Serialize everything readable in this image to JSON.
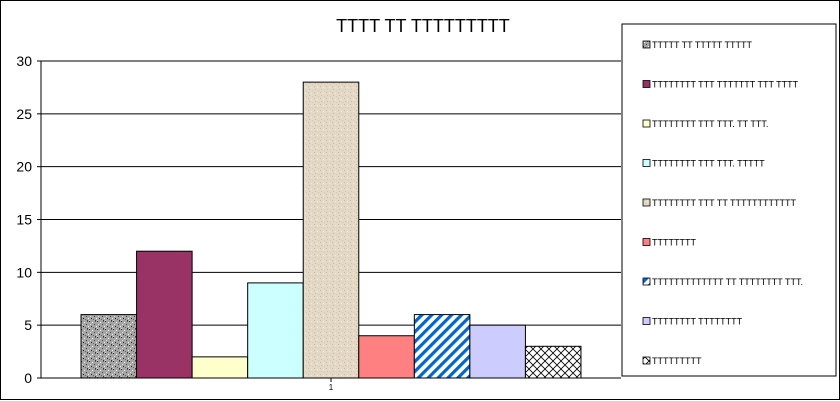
{
  "chart_data": {
    "type": "bar",
    "title": "TTTT TT TTTTTTTTT",
    "xlabel": "",
    "ylabel": "",
    "categories": [
      "1"
    ],
    "ylim": [
      0,
      30
    ],
    "yticks": [
      0,
      5,
      10,
      15,
      20,
      25,
      30
    ],
    "grid": true,
    "legend_position": "right",
    "series": [
      {
        "name": "TTTTT TT TTTTT TTTTT",
        "values": [
          6
        ],
        "color": "#a3a3a3",
        "pattern": "granite"
      },
      {
        "name": "TTTTTTTT TTT TTTTTTT TTT TTTT",
        "values": [
          12
        ],
        "color": "#993366",
        "pattern": "solid"
      },
      {
        "name": "TTTTTTTT TTT TTT. TT TTT.",
        "values": [
          2
        ],
        "color": "#ffffcc",
        "pattern": "solid"
      },
      {
        "name": "TTTTTTTT TTT TTT. TTTTT",
        "values": [
          9
        ],
        "color": "#ccffff",
        "pattern": "solid"
      },
      {
        "name": "TTTTTTTT TTT TT  TTTTTTTTTTTT",
        "values": [
          28
        ],
        "color": "#e3d9c6",
        "pattern": "sand"
      },
      {
        "name": "TTTTTTTT",
        "values": [
          4
        ],
        "color": "#ff8080",
        "pattern": "solid"
      },
      {
        "name": "TTTTTTTTTTTTT TT TTTTTTTT TTT.",
        "values": [
          6
        ],
        "color": "#0066cc",
        "pattern": "diagonal-stripes"
      },
      {
        "name": "TTTTTTTT TTTTTTTT",
        "values": [
          5
        ],
        "color": "#ccccff",
        "pattern": "solid"
      },
      {
        "name": "TTTTTTTTT",
        "values": [
          3
        ],
        "color": "#000000",
        "pattern": "crosshatch"
      }
    ]
  }
}
